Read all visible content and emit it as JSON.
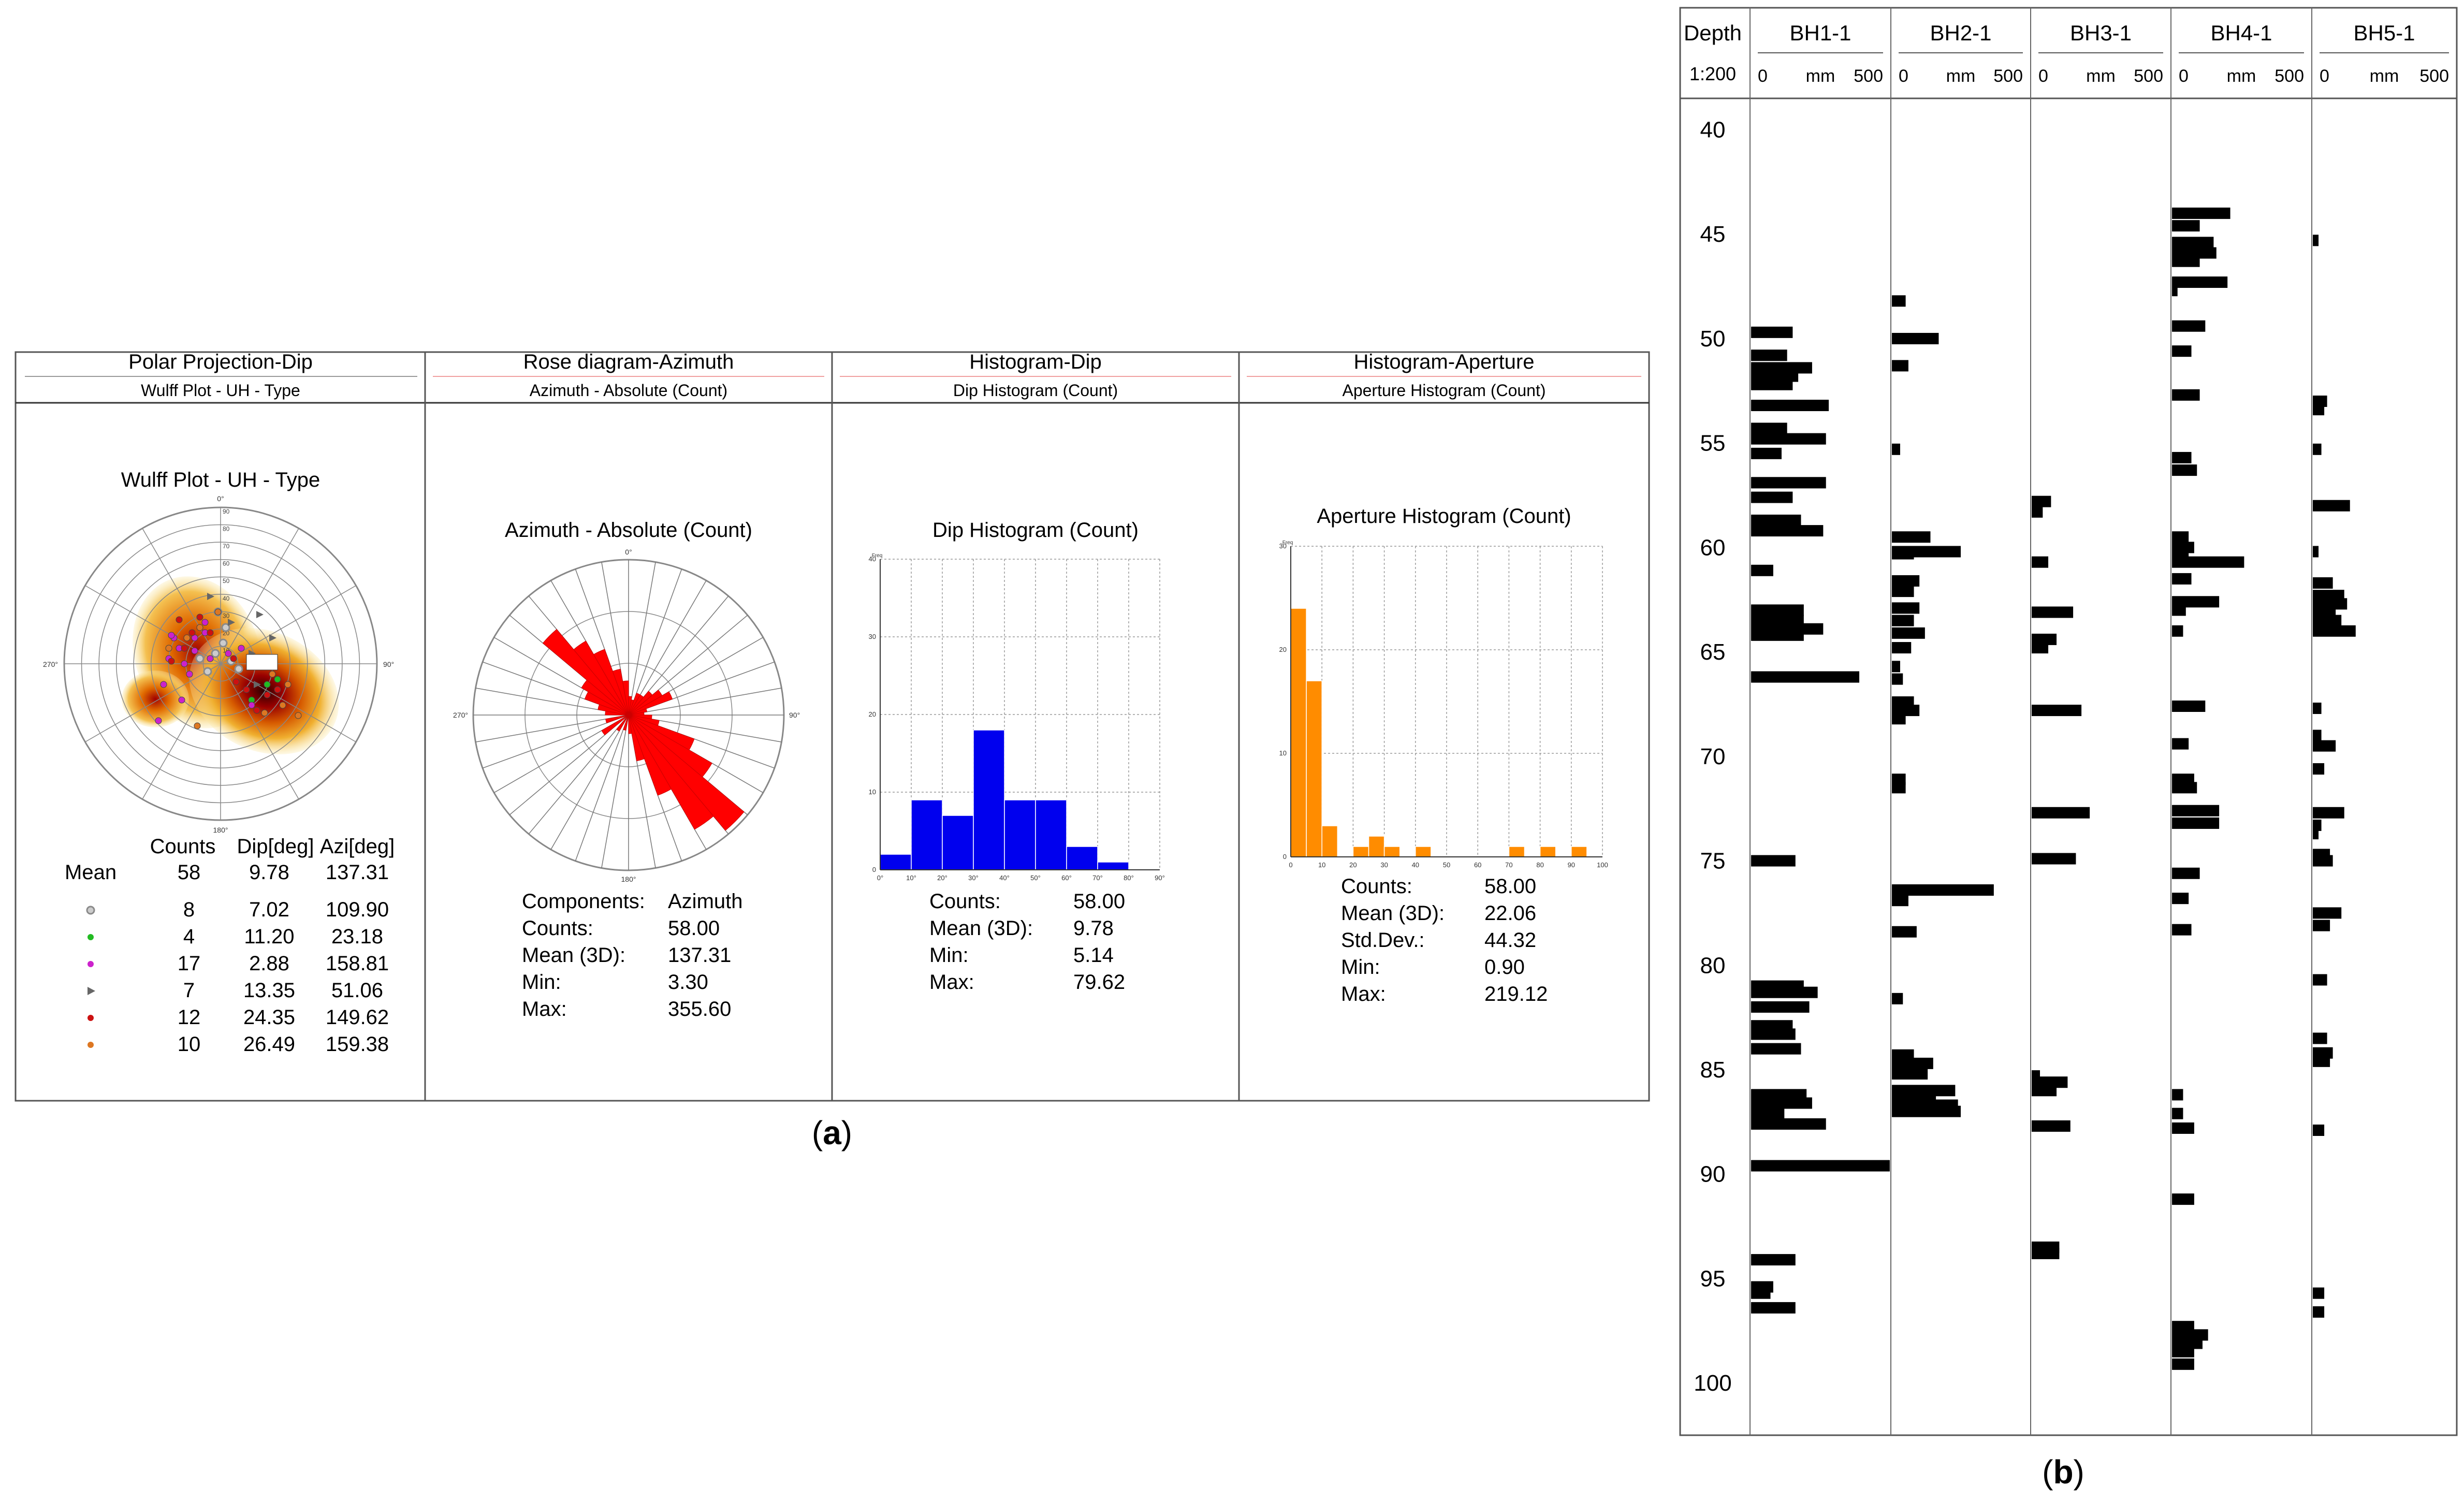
{
  "panel_a": {
    "caption_label": "a",
    "columns": [
      {
        "title": "Polar Projection-Dip",
        "subtitle": "Wulff Plot - UH - Type"
      },
      {
        "title": "Rose diagram-Azimuth",
        "subtitle": "Azimuth - Absolute (Count)"
      },
      {
        "title": "Histogram-Dip",
        "subtitle": "Dip Histogram (Count)"
      },
      {
        "title": "Histogram-Aperture",
        "subtitle": "Aperture Histogram (Count)"
      }
    ],
    "wulff": {
      "plot_title": "Wulff Plot - UH - Type",
      "angle_labels": [
        "0°",
        "90°",
        "180°",
        "270°"
      ],
      "ring_labels": [
        "10",
        "20",
        "30",
        "40",
        "50",
        "60",
        "70",
        "80",
        "90"
      ],
      "table_headers": [
        "Counts",
        "Dip[deg]",
        "Azi[deg]"
      ],
      "mean_label": "Mean",
      "rows": [
        {
          "label": "Mean",
          "counts": "58",
          "dip": "9.78",
          "azi": "137.31"
        },
        {
          "symbol": "circle",
          "color": "#8a8a8a",
          "counts": "8",
          "dip": "7.02",
          "azi": "109.90"
        },
        {
          "symbol": "dot",
          "color": "#22bb22",
          "counts": "4",
          "dip": "11.20",
          "azi": "23.18"
        },
        {
          "symbol": "dot",
          "color": "#cc22cc",
          "counts": "17",
          "dip": "2.88",
          "azi": "158.81"
        },
        {
          "symbol": "triangle",
          "color": "#666666",
          "counts": "7",
          "dip": "13.35",
          "azi": "51.06"
        },
        {
          "symbol": "dot",
          "color": "#cc1111",
          "counts": "12",
          "dip": "24.35",
          "azi": "149.62"
        },
        {
          "symbol": "dot",
          "color": "#dd7722",
          "counts": "10",
          "dip": "26.49",
          "azi": "159.38"
        }
      ]
    }
  },
  "chart_data": [
    {
      "type": "rose",
      "title": "Azimuth - Absolute (Count)",
      "sector_width_deg": 10,
      "sectors": [
        {
          "az": 315,
          "r": 0.72
        },
        {
          "az": 325,
          "r": 0.55
        },
        {
          "az": 335,
          "r": 0.45
        },
        {
          "az": 345,
          "r": 0.3
        },
        {
          "az": 355,
          "r": 0.22
        },
        {
          "az": 5,
          "r": 0.12
        },
        {
          "az": 15,
          "r": 0.1
        },
        {
          "az": 25,
          "r": 0.15
        },
        {
          "az": 35,
          "r": 0.15
        },
        {
          "az": 45,
          "r": 0.2
        },
        {
          "az": 55,
          "r": 0.25
        },
        {
          "az": 65,
          "r": 0.3
        },
        {
          "az": 75,
          "r": 0.12
        },
        {
          "az": 85,
          "r": 0.1
        },
        {
          "az": 95,
          "r": 0.15
        },
        {
          "az": 105,
          "r": 0.2
        },
        {
          "az": 115,
          "r": 0.45
        },
        {
          "az": 125,
          "r": 0.62
        },
        {
          "az": 135,
          "r": 0.97
        },
        {
          "az": 145,
          "r": 0.85
        },
        {
          "az": 155,
          "r": 0.55
        },
        {
          "az": 165,
          "r": 0.3
        },
        {
          "az": 175,
          "r": 0.12
        },
        {
          "az": 195,
          "r": 0.1
        },
        {
          "az": 215,
          "r": 0.12
        },
        {
          "az": 235,
          "r": 0.2
        },
        {
          "az": 255,
          "r": 0.15
        },
        {
          "az": 275,
          "r": 0.15
        },
        {
          "az": 285,
          "r": 0.2
        },
        {
          "az": 295,
          "r": 0.3
        },
        {
          "az": 305,
          "r": 0.35
        }
      ],
      "angle_labels": [
        "0°",
        "90°",
        "180°",
        "270°"
      ],
      "stats": [
        {
          "label": "Components:",
          "value": "Azimuth"
        },
        {
          "label": "Counts:",
          "value": "58.00"
        },
        {
          "label": "Mean (3D):",
          "value": "137.31"
        },
        {
          "label": "Min:",
          "value": "3.30"
        },
        {
          "label": "Max:",
          "value": "355.60"
        }
      ]
    },
    {
      "type": "bar",
      "title": "Dip Histogram (Count)",
      "color": "#0000ee",
      "bin_edges": [
        0,
        10,
        20,
        30,
        40,
        50,
        60,
        70,
        80,
        90
      ],
      "values": [
        2,
        9,
        7,
        18,
        9,
        9,
        3,
        1,
        0
      ],
      "x_tick_labels": [
        "0°",
        "10°",
        "20°",
        "30°",
        "40°",
        "50°",
        "60°",
        "70°",
        "80°",
        "90°"
      ],
      "y_tick_labels": [
        "0",
        "10",
        "20",
        "30",
        "40"
      ],
      "ylim": [
        0,
        40
      ],
      "ylabel": "Freq",
      "stats": [
        {
          "label": "Counts:",
          "value": "58.00"
        },
        {
          "label": "Mean (3D):",
          "value": "9.78"
        },
        {
          "label": "Min:",
          "value": "5.14"
        },
        {
          "label": "Max:",
          "value": "79.62"
        }
      ]
    },
    {
      "type": "bar",
      "title": "Aperture Histogram (Count)",
      "color": "#ff8c00",
      "bin_edges": [
        0,
        5,
        10,
        15,
        20,
        25,
        30,
        35,
        40,
        45,
        50,
        55,
        60,
        65,
        70,
        75,
        80,
        85,
        90,
        95,
        100
      ],
      "values": [
        24,
        17,
        3,
        0,
        1,
        2,
        1,
        0,
        1,
        0,
        0,
        0,
        0,
        0,
        1,
        0,
        1,
        0,
        1,
        0
      ],
      "x_tick_labels": [
        "0",
        "10",
        "20",
        "30",
        "40",
        "50",
        "60",
        "70",
        "80",
        "90",
        "100"
      ],
      "y_tick_labels": [
        "0",
        "10",
        "20",
        "30"
      ],
      "ylim": [
        0,
        30
      ],
      "ylabel": "Freq",
      "stats": [
        {
          "label": "Counts:",
          "value": "58.00"
        },
        {
          "label": "Mean (3D):",
          "value": "22.06"
        },
        {
          "label": "Std.Dev.:",
          "value": "44.32"
        },
        {
          "label": "Min:",
          "value": "0.90"
        },
        {
          "label": "Max:",
          "value": "219.12"
        }
      ]
    },
    {
      "type": "borehole_log",
      "depth_header": "Depth",
      "scale_label": "1:200",
      "depth_range": [
        38.5,
        102.5
      ],
      "depth_ticks": [
        40,
        45,
        50,
        55,
        60,
        65,
        70,
        75,
        80,
        85,
        90,
        95,
        100
      ],
      "aperture_unit": "mm",
      "aperture_range": [
        0,
        500
      ],
      "axis_labels": [
        "0",
        "mm",
        "500"
      ],
      "boreholes": [
        {
          "name": "BH1-1",
          "fractures": [
            [
              49.7,
              150
            ],
            [
              50.8,
              130
            ],
            [
              51.4,
              220
            ],
            [
              51.8,
              170
            ],
            [
              52.2,
              150
            ],
            [
              53.2,
              280
            ],
            [
              54.3,
              130
            ],
            [
              54.8,
              270
            ],
            [
              55.5,
              110
            ],
            [
              56.9,
              270
            ],
            [
              57.6,
              150
            ],
            [
              58.7,
              180
            ],
            [
              59.2,
              260
            ],
            [
              61.1,
              80
            ],
            [
              63.0,
              190
            ],
            [
              63.5,
              190
            ],
            [
              63.9,
              260
            ],
            [
              64.2,
              190
            ],
            [
              66.2,
              390
            ],
            [
              75.0,
              160
            ],
            [
              81.0,
              190
            ],
            [
              81.3,
              240
            ],
            [
              82.0,
              210
            ],
            [
              82.9,
              150
            ],
            [
              83.3,
              160
            ],
            [
              84.0,
              180
            ],
            [
              86.2,
              200
            ],
            [
              86.6,
              220
            ],
            [
              87.1,
              120
            ],
            [
              87.6,
              270
            ],
            [
              89.6,
              500
            ],
            [
              94.1,
              160
            ],
            [
              95.4,
              80
            ],
            [
              95.7,
              70
            ],
            [
              96.4,
              160
            ]
          ]
        },
        {
          "name": "BH2-1",
          "fractures": [
            [
              48.2,
              50
            ],
            [
              50.0,
              170
            ],
            [
              51.3,
              60
            ],
            [
              55.3,
              30
            ],
            [
              59.5,
              140
            ],
            [
              60.3,
              80
            ],
            [
              60.2,
              250
            ],
            [
              61.6,
              100
            ],
            [
              62.1,
              80
            ],
            [
              62.9,
              100
            ],
            [
              63.5,
              80
            ],
            [
              64.1,
              120
            ],
            [
              64.8,
              70
            ],
            [
              65.7,
              30
            ],
            [
              66.3,
              40
            ],
            [
              67.4,
              80
            ],
            [
              67.8,
              100
            ],
            [
              68.2,
              50
            ],
            [
              71.1,
              50
            ],
            [
              71.5,
              50
            ],
            [
              76.4,
              370
            ],
            [
              76.9,
              60
            ],
            [
              78.4,
              90
            ],
            [
              81.6,
              40
            ],
            [
              84.3,
              80
            ],
            [
              84.7,
              150
            ],
            [
              85.2,
              130
            ],
            [
              86.0,
              230
            ],
            [
              86.3,
              160
            ],
            [
              86.7,
              240
            ],
            [
              87.0,
              250
            ]
          ]
        },
        {
          "name": "BH3-1",
          "fractures": [
            [
              57.8,
              70
            ],
            [
              58.3,
              40
            ],
            [
              60.7,
              60
            ],
            [
              63.1,
              150
            ],
            [
              64.4,
              90
            ],
            [
              64.8,
              60
            ],
            [
              67.8,
              180
            ],
            [
              72.7,
              210
            ],
            [
              74.9,
              160
            ],
            [
              85.3,
              30
            ],
            [
              85.6,
              130
            ],
            [
              86.0,
              90
            ],
            [
              87.7,
              140
            ],
            [
              93.5,
              100
            ],
            [
              93.8,
              100
            ]
          ]
        },
        {
          "name": "BH4-1",
          "fractures": [
            [
              44.0,
              210
            ],
            [
              44.6,
              100
            ],
            [
              45.4,
              150
            ],
            [
              45.9,
              160
            ],
            [
              46.3,
              100
            ],
            [
              47.3,
              200
            ],
            [
              47.7,
              20
            ],
            [
              49.4,
              120
            ],
            [
              50.6,
              70
            ],
            [
              52.7,
              100
            ],
            [
              55.7,
              70
            ],
            [
              56.3,
              90
            ],
            [
              59.5,
              60
            ],
            [
              60.0,
              80
            ],
            [
              60.5,
              60
            ],
            [
              60.7,
              260
            ],
            [
              61.5,
              70
            ],
            [
              62.6,
              170
            ],
            [
              63.0,
              50
            ],
            [
              64.0,
              40
            ],
            [
              67.6,
              120
            ],
            [
              69.4,
              60
            ],
            [
              71.1,
              80
            ],
            [
              71.5,
              90
            ],
            [
              72.6,
              170
            ],
            [
              73.2,
              170
            ],
            [
              75.6,
              100
            ],
            [
              76.8,
              60
            ],
            [
              78.3,
              70
            ],
            [
              86.2,
              40
            ],
            [
              87.1,
              40
            ],
            [
              87.8,
              80
            ],
            [
              91.2,
              80
            ],
            [
              97.3,
              80
            ],
            [
              97.7,
              130
            ],
            [
              98.1,
              110
            ],
            [
              98.5,
              80
            ],
            [
              99.1,
              80
            ]
          ]
        },
        {
          "name": "BH5-1",
          "fractures": [
            [
              45.3,
              20
            ],
            [
              53.0,
              50
            ],
            [
              53.4,
              40
            ],
            [
              55.3,
              30
            ],
            [
              58.0,
              130
            ],
            [
              60.2,
              20
            ],
            [
              61.7,
              70
            ],
            [
              62.3,
              110
            ],
            [
              62.7,
              120
            ],
            [
              63.1,
              80
            ],
            [
              63.5,
              100
            ],
            [
              64.0,
              150
            ],
            [
              67.7,
              30
            ],
            [
              69.0,
              30
            ],
            [
              69.5,
              80
            ],
            [
              70.6,
              40
            ],
            [
              72.7,
              110
            ],
            [
              73.3,
              30
            ],
            [
              73.7,
              20
            ],
            [
              74.7,
              60
            ],
            [
              75.0,
              70
            ],
            [
              77.5,
              100
            ],
            [
              78.1,
              60
            ],
            [
              80.7,
              50
            ],
            [
              83.5,
              50
            ],
            [
              84.2,
              70
            ],
            [
              84.6,
              60
            ],
            [
              87.9,
              40
            ],
            [
              95.7,
              40
            ],
            [
              96.6,
              40
            ]
          ]
        }
      ],
      "caption_label": "b"
    }
  ]
}
